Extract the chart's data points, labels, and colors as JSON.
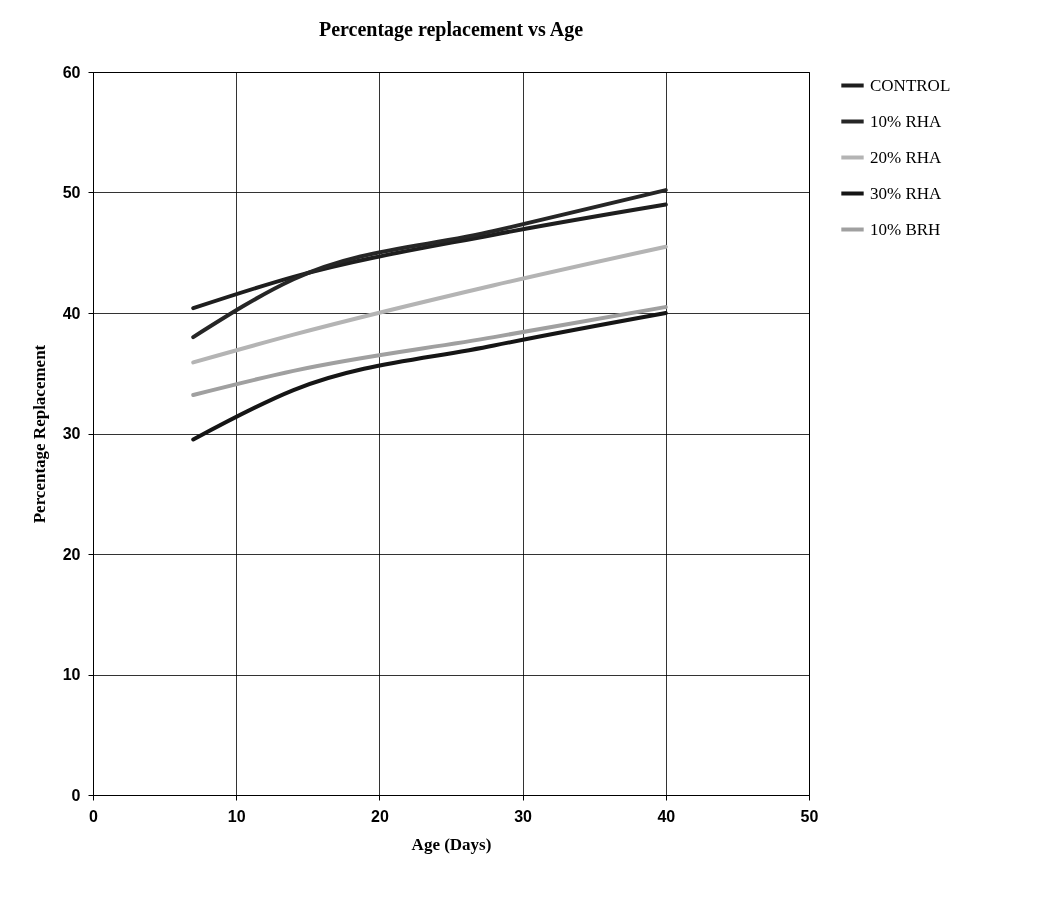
{
  "chart_data": {
    "type": "line",
    "title": "Percentage replacement vs Age",
    "xlabel": "Age (Days)",
    "ylabel": "Percentage Replacement",
    "xlim": [
      0,
      50
    ],
    "xticks": [
      0,
      10,
      20,
      30,
      40,
      50
    ],
    "ylim": [
      0,
      60
    ],
    "yticks": [
      0,
      10,
      20,
      30,
      40,
      50,
      60
    ],
    "grid": true,
    "legend": "right",
    "line_style": "solid",
    "x": [
      7,
      14,
      28,
      40
    ],
    "series": [
      {
        "name": "CONTROL",
        "color": "#1e1e1e",
        "values": [
          40.4,
          43.0,
          46.5,
          49.0
        ]
      },
      {
        "name": "10% RHA",
        "color": "#262626",
        "values": [
          38.0,
          42.8,
          46.8,
          50.2
        ]
      },
      {
        "name": "20% RHA",
        "color": "#b4b4b4",
        "values": [
          35.9,
          38.2,
          42.3,
          45.5
        ]
      },
      {
        "name": "30% RHA",
        "color": "#151515",
        "values": [
          29.5,
          33.6,
          37.3,
          40.0
        ]
      },
      {
        "name": "10% BRH",
        "color": "#a0a0a0",
        "values": [
          33.2,
          35.2,
          38.0,
          40.5
        ]
      }
    ]
  }
}
